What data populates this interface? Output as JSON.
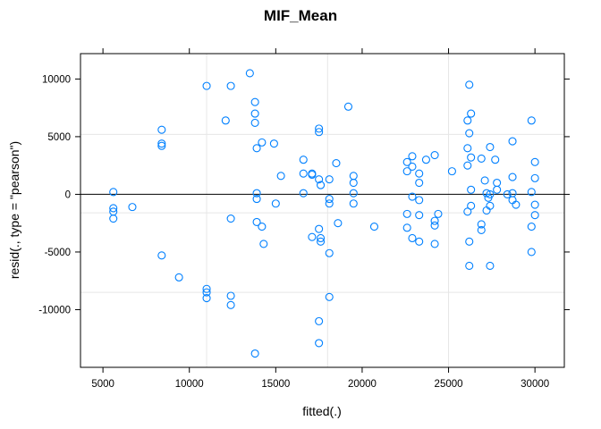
{
  "chart_data": {
    "type": "scatter",
    "title": "MIF_Mean",
    "xlabel": "fitted(.)",
    "ylabel": "resid(., type = \"pearson\")",
    "xlim": [
      3700,
      31700
    ],
    "ylim": [
      -15000,
      12200
    ],
    "xticks": [
      5000,
      10000,
      15000,
      20000,
      25000,
      30000
    ],
    "yticks": [
      -10000,
      -5000,
      0,
      5000,
      10000
    ],
    "grid": true,
    "grid_x": [
      11000,
      18000,
      25000
    ],
    "grid_y": [
      -8500,
      -1600,
      5200
    ],
    "reference_line_y": 0,
    "colors": {
      "points": "#0080ff",
      "grid": "#e6e6e6",
      "reference": "#000000",
      "frame": "#000000"
    },
    "points": [
      [
        5600,
        200
      ],
      [
        5600,
        -1200
      ],
      [
        5600,
        -1500
      ],
      [
        5600,
        -2100
      ],
      [
        6700,
        -1100
      ],
      [
        8400,
        5600
      ],
      [
        8400,
        4400
      ],
      [
        8400,
        4200
      ],
      [
        8400,
        -5300
      ],
      [
        9400,
        -7200
      ],
      [
        11000,
        9400
      ],
      [
        11000,
        -8200
      ],
      [
        11000,
        -8500
      ],
      [
        11000,
        -9000
      ],
      [
        12100,
        6400
      ],
      [
        12400,
        9400
      ],
      [
        12400,
        -2100
      ],
      [
        12400,
        -8800
      ],
      [
        12400,
        -9600
      ],
      [
        13500,
        10500
      ],
      [
        13800,
        8000
      ],
      [
        13800,
        7000
      ],
      [
        13800,
        6200
      ],
      [
        13900,
        4000
      ],
      [
        13900,
        100
      ],
      [
        13900,
        -400
      ],
      [
        13900,
        -2400
      ],
      [
        13800,
        -13800
      ],
      [
        14200,
        4500
      ],
      [
        14200,
        -2800
      ],
      [
        14300,
        -4300
      ],
      [
        14900,
        4400
      ],
      [
        15000,
        -800
      ],
      [
        15300,
        1600
      ],
      [
        16600,
        3000
      ],
      [
        16600,
        1800
      ],
      [
        16600,
        100
      ],
      [
        17100,
        1800
      ],
      [
        17100,
        1700
      ],
      [
        17100,
        -3700
      ],
      [
        17500,
        5700
      ],
      [
        17500,
        5400
      ],
      [
        17500,
        1300
      ],
      [
        17600,
        800
      ],
      [
        17500,
        -3000
      ],
      [
        17600,
        -3800
      ],
      [
        17600,
        -4100
      ],
      [
        17500,
        -11000
      ],
      [
        17500,
        -12900
      ],
      [
        18100,
        1300
      ],
      [
        18100,
        -400
      ],
      [
        18100,
        -800
      ],
      [
        18100,
        -5100
      ],
      [
        18100,
        -8900
      ],
      [
        18500,
        2700
      ],
      [
        18600,
        -2500
      ],
      [
        19200,
        7600
      ],
      [
        19500,
        1600
      ],
      [
        19500,
        1000
      ],
      [
        19500,
        100
      ],
      [
        19500,
        -800
      ],
      [
        20700,
        -2800
      ],
      [
        22600,
        2800
      ],
      [
        22600,
        2000
      ],
      [
        22600,
        -1700
      ],
      [
        22600,
        -2900
      ],
      [
        22900,
        3300
      ],
      [
        22900,
        2400
      ],
      [
        22900,
        -200
      ],
      [
        22900,
        -3800
      ],
      [
        23300,
        1800
      ],
      [
        23300,
        1000
      ],
      [
        23300,
        -500
      ],
      [
        23300,
        -1800
      ],
      [
        23300,
        -4100
      ],
      [
        23700,
        3000
      ],
      [
        24200,
        3400
      ],
      [
        24200,
        -2300
      ],
      [
        24200,
        -2700
      ],
      [
        24200,
        -4300
      ],
      [
        24400,
        -1700
      ],
      [
        25200,
        2000
      ],
      [
        26100,
        6400
      ],
      [
        26100,
        4000
      ],
      [
        26100,
        2500
      ],
      [
        26100,
        -1500
      ],
      [
        26200,
        9500
      ],
      [
        26200,
        5300
      ],
      [
        26200,
        -4100
      ],
      [
        26200,
        -6200
      ],
      [
        26300,
        7000
      ],
      [
        26300,
        3200
      ],
      [
        26300,
        400
      ],
      [
        26300,
        -1000
      ],
      [
        26900,
        3100
      ],
      [
        26900,
        -2600
      ],
      [
        26900,
        -3100
      ],
      [
        27100,
        1200
      ],
      [
        27200,
        100
      ],
      [
        27200,
        -1400
      ],
      [
        27300,
        -300
      ],
      [
        27400,
        4100
      ],
      [
        27400,
        0
      ],
      [
        27400,
        -1000
      ],
      [
        27400,
        -6200
      ],
      [
        27700,
        3000
      ],
      [
        27800,
        1000
      ],
      [
        27800,
        400
      ],
      [
        28400,
        0
      ],
      [
        28700,
        4600
      ],
      [
        28700,
        1500
      ],
      [
        28700,
        100
      ],
      [
        28700,
        -500
      ],
      [
        28900,
        -900
      ],
      [
        29800,
        6400
      ],
      [
        29800,
        200
      ],
      [
        29800,
        -2800
      ],
      [
        29800,
        -5000
      ],
      [
        30000,
        2800
      ],
      [
        30000,
        1400
      ],
      [
        30000,
        -900
      ],
      [
        30000,
        -1800
      ]
    ]
  }
}
